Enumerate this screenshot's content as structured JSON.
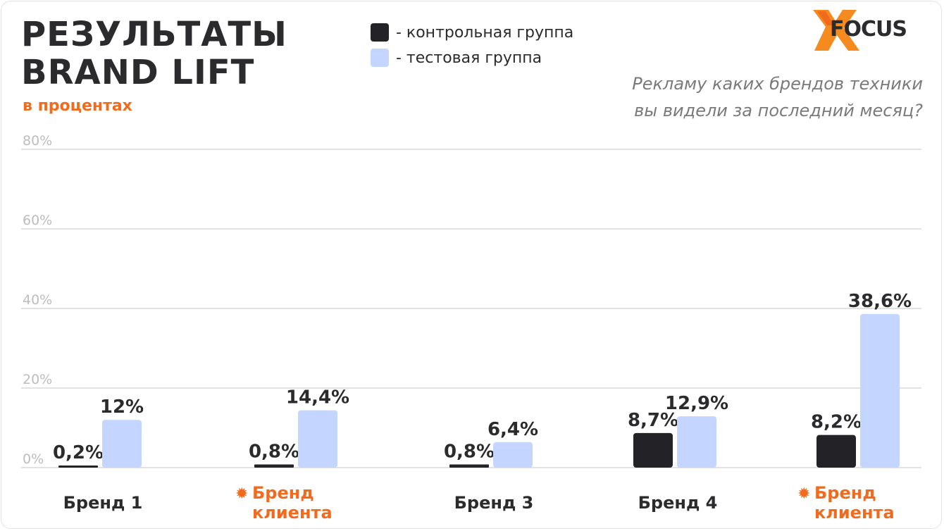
{
  "header": {
    "title_line1": "РЕЗУЛЬТАТЫ",
    "title_line2": "BRAND LIFT",
    "subtitle": "в процентах",
    "question_line1": "Рекламу каких брендов техники",
    "question_line2": "вы видели за последний месяц?"
  },
  "logo": {
    "text": "FOCUS",
    "icon": "x-mark-icon"
  },
  "legend": [
    {
      "label": "- контрольная группа",
      "color": "#222227"
    },
    {
      "label": "- тестовая группа",
      "color": "#c4d5ff"
    }
  ],
  "colors": {
    "accent": "#f26b1d",
    "control": "#222227",
    "test": "#c4d5ff",
    "grid": "#e2e2e2",
    "tick": "#bdbdbd"
  },
  "chart_data": {
    "type": "bar",
    "categories": [
      "Бренд 1",
      "Бренд клиента",
      "Бренд 3",
      "Бренд 4",
      "Бренд клиента"
    ],
    "category_lines": [
      [
        "Бренд 1"
      ],
      [
        "Бренд",
        "клиента"
      ],
      [
        "Бренд 3"
      ],
      [
        "Бренд 4"
      ],
      [
        "Бренд",
        "клиента"
      ]
    ],
    "highlight": [
      false,
      true,
      false,
      false,
      true
    ],
    "highlight_marker": "✹",
    "series": [
      {
        "name": "контрольная группа",
        "values": [
          0.2,
          0.8,
          0.8,
          8.7,
          8.2
        ],
        "labels": [
          "0,2%",
          "0,8%",
          "0,8%",
          "8,7%",
          "8,2%"
        ]
      },
      {
        "name": "тестовая группа",
        "values": [
          12,
          14.4,
          6.4,
          12.9,
          38.6
        ],
        "labels": [
          "12%",
          "14,4%",
          "6,4%",
          "12,9%",
          "38,6%"
        ]
      }
    ],
    "yticks": [
      0,
      20,
      40,
      60,
      80
    ],
    "ytick_labels": [
      "0%",
      "20%",
      "40%",
      "60%",
      "80%"
    ],
    "ylim": [
      0,
      80
    ],
    "grid": true,
    "legend_position": "top"
  }
}
